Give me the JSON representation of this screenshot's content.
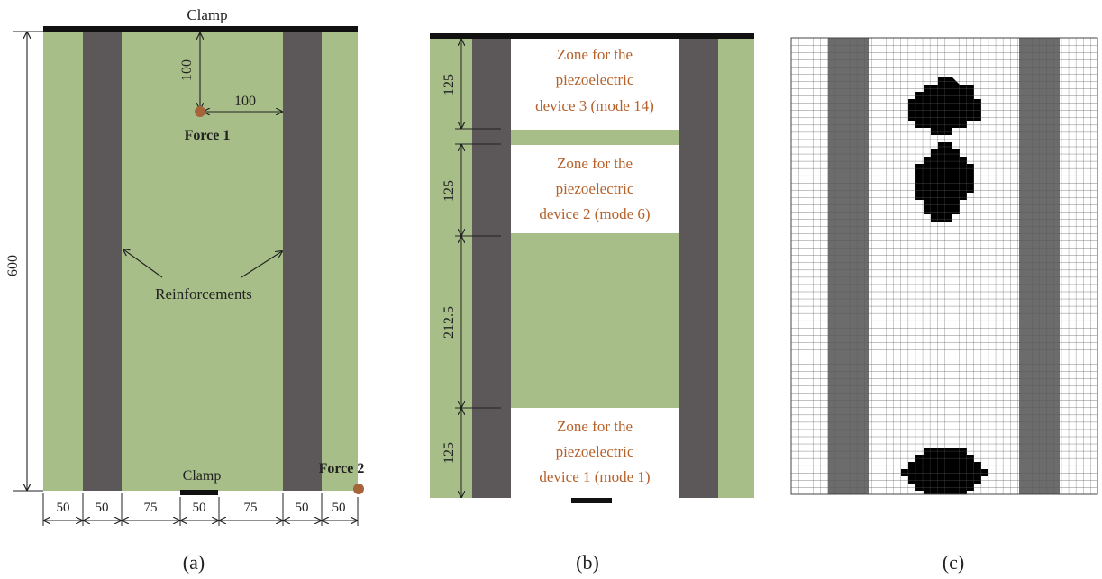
{
  "panel_a": {
    "clamp_top": "Clamp",
    "clamp_bottom": "Clamp",
    "force1": "Force 1",
    "force2": "Force 2",
    "reinforcements": "Reinforcements",
    "dim_100_v": "100",
    "dim_100_h": "100",
    "dim_600": "600",
    "bottom_dims": [
      "50",
      "50",
      "75",
      "50",
      "75",
      "50",
      "50"
    ],
    "caption": "(a)"
  },
  "panel_b": {
    "zone3": [
      "Zone for the",
      "piezoelectric",
      "device 3 (mode 14)"
    ],
    "zone2": [
      "Zone for the",
      "piezoelectric",
      "device 2 (mode 6)"
    ],
    "zone1": [
      "Zone for the",
      "piezoelectric",
      "device 1 (mode 1)"
    ],
    "dims": [
      "125",
      "125",
      "212.5",
      "125"
    ],
    "caption": "(b)"
  },
  "panel_c": {
    "caption": "(c)"
  },
  "colors": {
    "plate": "#a8be88",
    "reinforcement": "#5c5759",
    "force": "#a5643a",
    "zone_text": "#b5612a",
    "clamp": "#111111"
  }
}
